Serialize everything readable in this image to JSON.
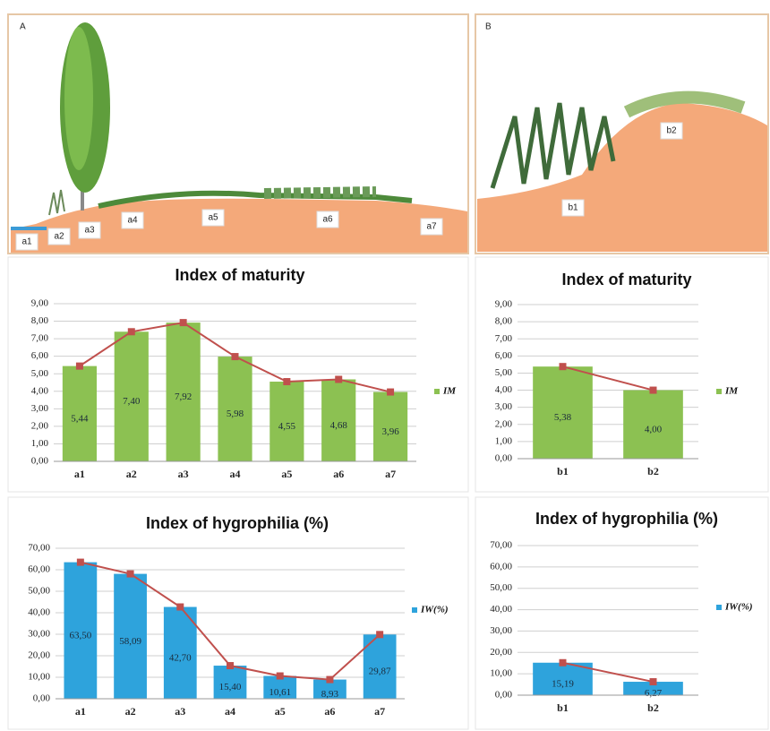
{
  "panels": [
    {
      "label": "A",
      "zones": [
        "a1",
        "a2",
        "a3",
        "a4",
        "a5",
        "a6",
        "a7"
      ]
    },
    {
      "label": "B",
      "zones": [
        "b1",
        "b2"
      ]
    }
  ],
  "chart_data": [
    {
      "type": "bar",
      "title": "Index of maturity",
      "categories": [
        "a1",
        "a2",
        "a3",
        "a4",
        "a5",
        "a6",
        "a7"
      ],
      "series": [
        {
          "name": "IM",
          "color": "#8cc152",
          "values": [
            5.44,
            7.4,
            7.92,
            5.98,
            4.55,
            4.68,
            3.96
          ],
          "value_labels": [
            "5,44",
            "7,40",
            "7,92",
            "5,98",
            "4,55",
            "4,68",
            "3,96"
          ]
        }
      ],
      "line_color": "#c0504d",
      "ylim": [
        0,
        9
      ],
      "yticks": [
        {
          "value": 0,
          "label": "0,00"
        },
        {
          "value": 1,
          "label": "1,00"
        },
        {
          "value": 2,
          "label": "2,00"
        },
        {
          "value": 3,
          "label": "3,00"
        },
        {
          "value": 4,
          "label": "4,00"
        },
        {
          "value": 5,
          "label": "5,00"
        },
        {
          "value": 6,
          "label": "6,00"
        },
        {
          "value": 7,
          "label": "7,00"
        },
        {
          "value": 8,
          "label": "8,00"
        },
        {
          "value": 9,
          "label": "9,00"
        }
      ],
      "grid": true,
      "legend": "right"
    },
    {
      "type": "bar",
      "title": "Index of maturity",
      "categories": [
        "b1",
        "b2"
      ],
      "series": [
        {
          "name": "IM",
          "color": "#8cc152",
          "values": [
            5.38,
            4.0
          ],
          "value_labels": [
            "5,38",
            "4,00"
          ]
        }
      ],
      "line_color": "#c0504d",
      "ylim": [
        0,
        9
      ],
      "yticks": [
        {
          "value": 0,
          "label": "0,00"
        },
        {
          "value": 1,
          "label": "1,00"
        },
        {
          "value": 2,
          "label": "2,00"
        },
        {
          "value": 3,
          "label": "3,00"
        },
        {
          "value": 4,
          "label": "4,00"
        },
        {
          "value": 5,
          "label": "5,00"
        },
        {
          "value": 6,
          "label": "6,00"
        },
        {
          "value": 7,
          "label": "7,00"
        },
        {
          "value": 8,
          "label": "8,00"
        },
        {
          "value": 9,
          "label": "9,00"
        }
      ],
      "grid": true,
      "legend": "right"
    },
    {
      "type": "bar",
      "title": "Index of hygrophilia (%)",
      "categories": [
        "a1",
        "a2",
        "a3",
        "a4",
        "a5",
        "a6",
        "a7"
      ],
      "series": [
        {
          "name": "IW(%)",
          "color": "#2ea3dc",
          "values": [
            63.5,
            58.09,
            42.7,
            15.4,
            10.61,
            8.93,
            29.87
          ],
          "value_labels": [
            "63,50",
            "58,09",
            "42,70",
            "15,40",
            "10,61",
            "8,93",
            "29,87"
          ]
        }
      ],
      "line_color": "#c0504d",
      "ylim": [
        0,
        70
      ],
      "yticks": [
        {
          "value": 0,
          "label": "0,00"
        },
        {
          "value": 10,
          "label": "10,00"
        },
        {
          "value": 20,
          "label": "20,00"
        },
        {
          "value": 30,
          "label": "30,00"
        },
        {
          "value": 40,
          "label": "40,00"
        },
        {
          "value": 50,
          "label": "50,00"
        },
        {
          "value": 60,
          "label": "60,00"
        },
        {
          "value": 70,
          "label": "70,00"
        }
      ],
      "grid": true,
      "legend": "right"
    },
    {
      "type": "bar",
      "title": "Index of hygrophilia (%)",
      "categories": [
        "b1",
        "b2"
      ],
      "series": [
        {
          "name": "IW(%)",
          "color": "#2ea3dc",
          "values": [
            15.19,
            6.27
          ],
          "value_labels": [
            "15,19",
            "6,27"
          ]
        }
      ],
      "line_color": "#c0504d",
      "ylim": [
        0,
        70
      ],
      "yticks": [
        {
          "value": 0,
          "label": "0,00"
        },
        {
          "value": 10,
          "label": "10,00"
        },
        {
          "value": 20,
          "label": "20,00"
        },
        {
          "value": 30,
          "label": "30,00"
        },
        {
          "value": 40,
          "label": "40,00"
        },
        {
          "value": 50,
          "label": "50,00"
        },
        {
          "value": 60,
          "label": "60,00"
        },
        {
          "value": 70,
          "label": "70,00"
        }
      ],
      "grid": true,
      "legend": "right"
    }
  ]
}
